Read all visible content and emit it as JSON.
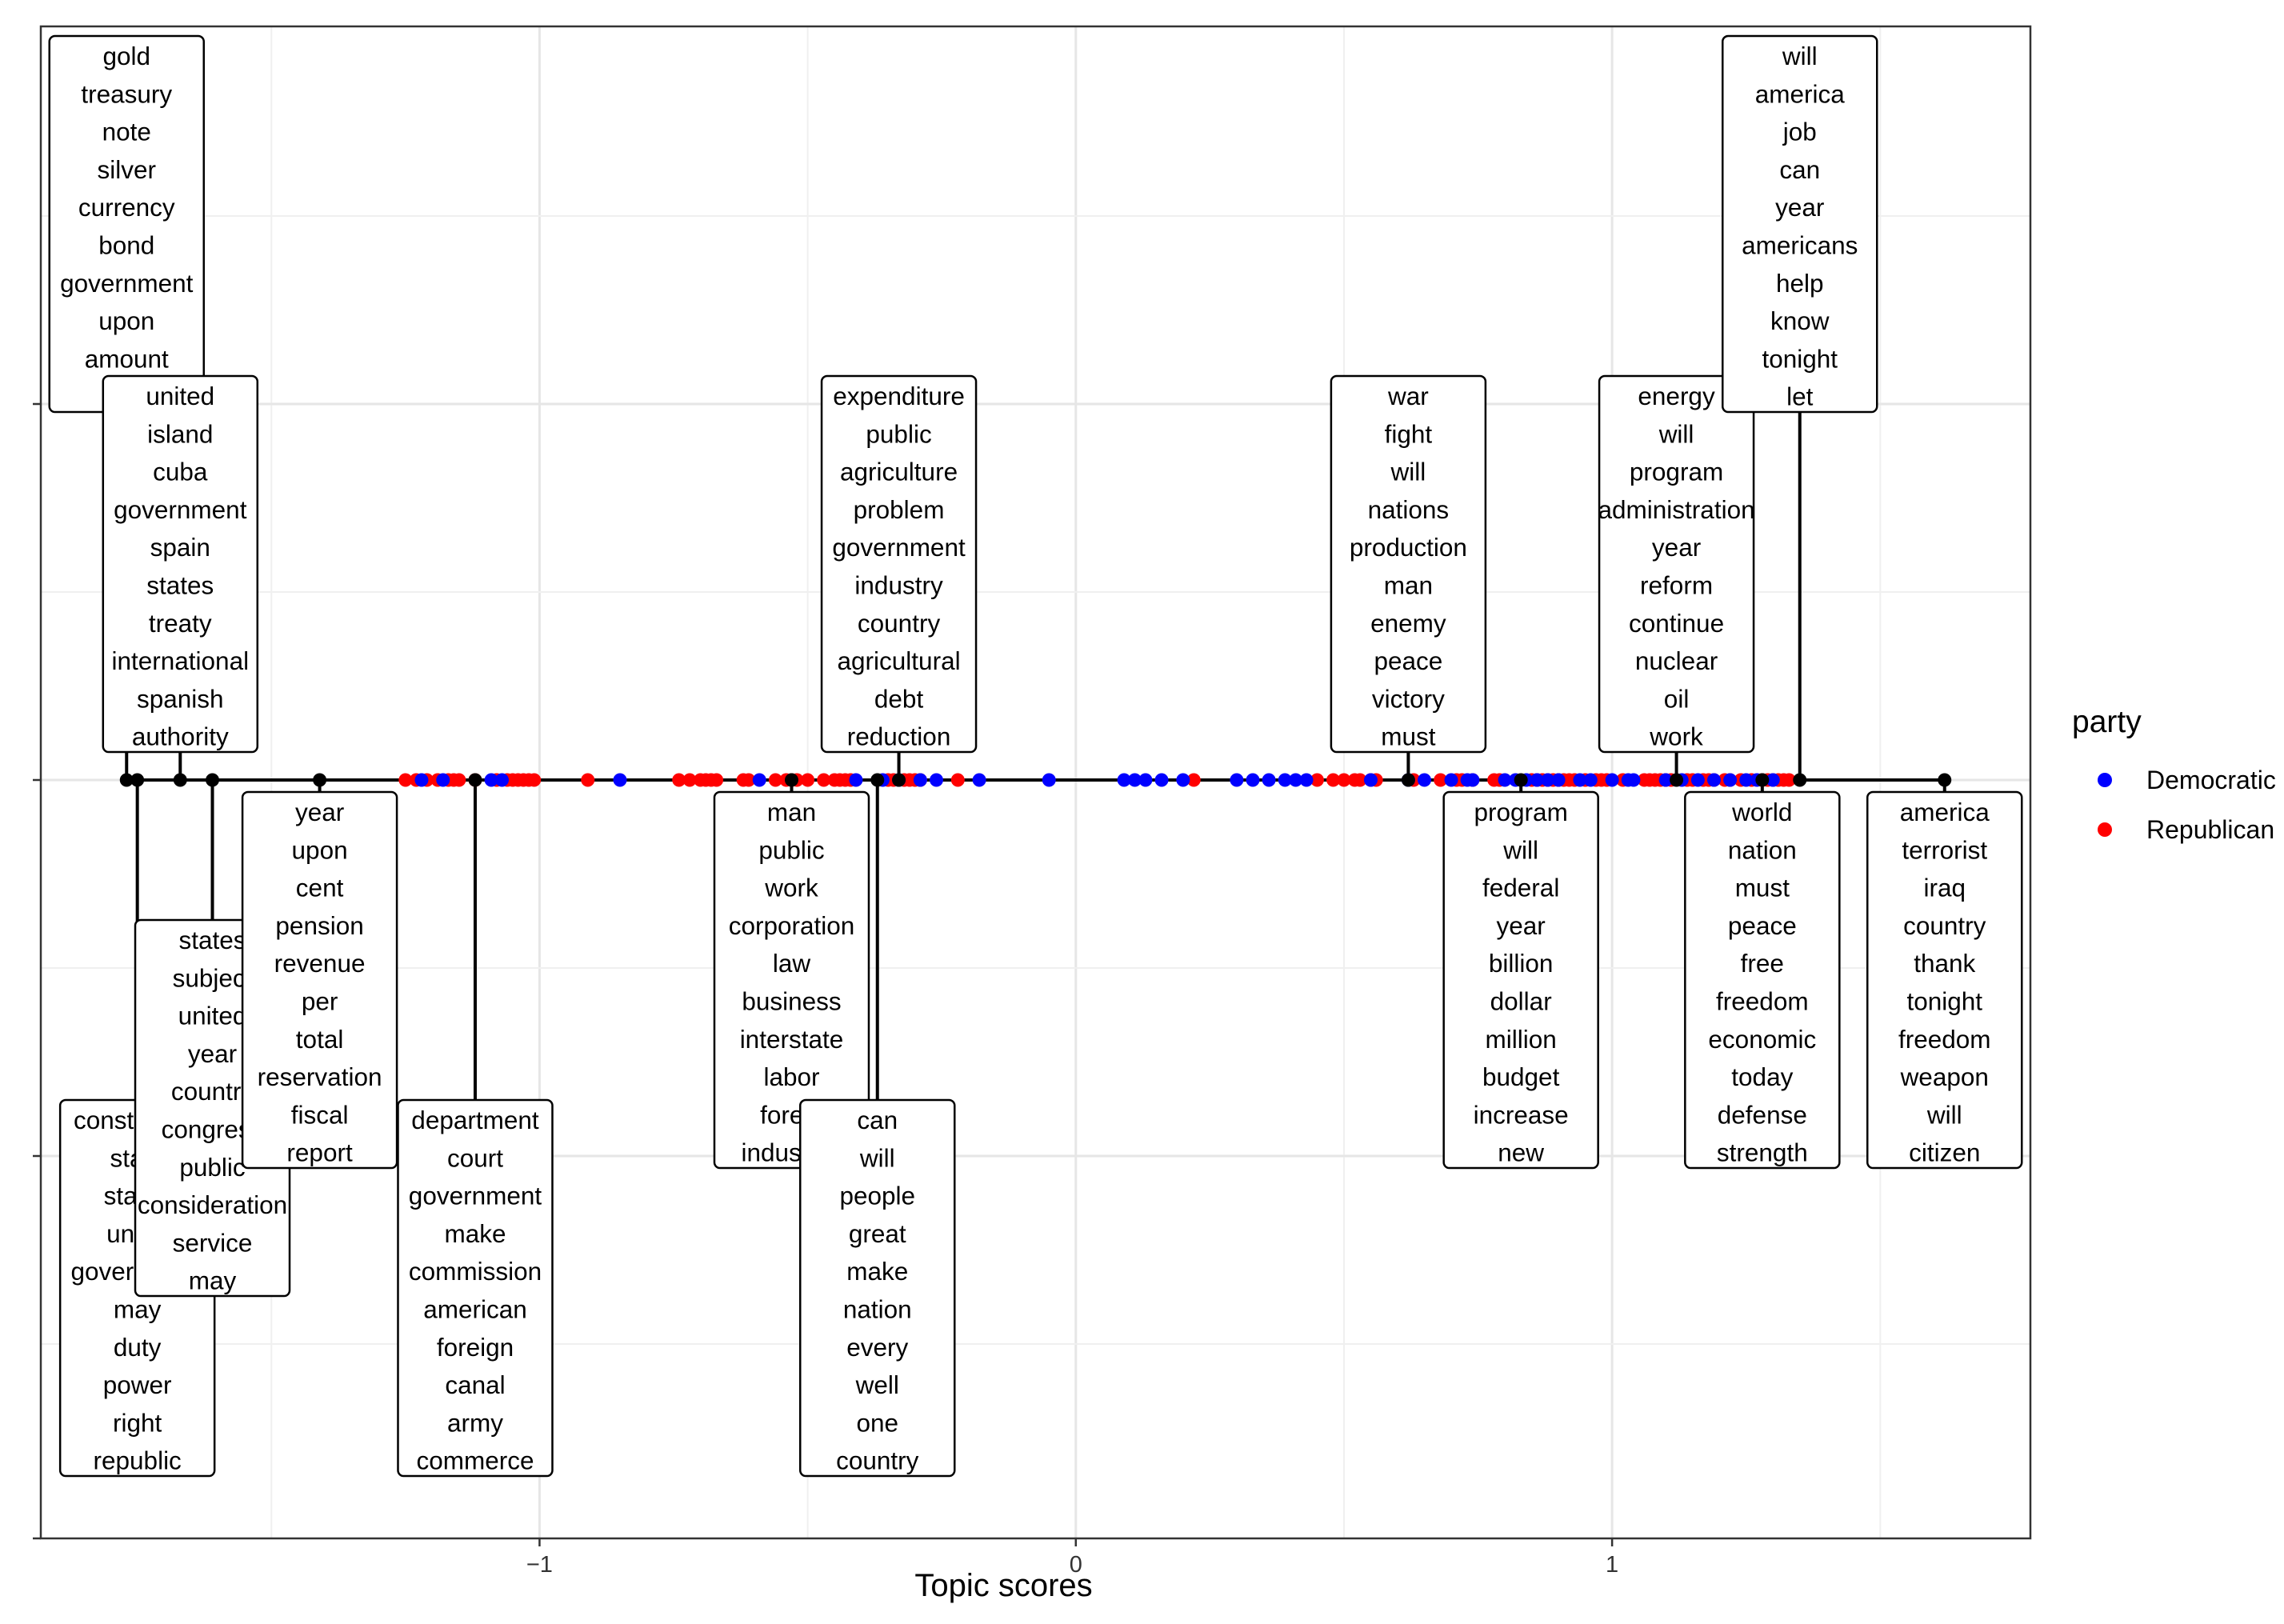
{
  "chart_data": {
    "type": "scatter",
    "xlabel": "Topic scores",
    "ylabel": "",
    "xlim": [
      -1.93,
      1.78
    ],
    "x_ticks": [
      -1,
      0,
      1
    ],
    "x_tick_labels": [
      "−1",
      "0",
      "1"
    ],
    "grid": true,
    "legend": {
      "title": "party",
      "position": "right",
      "entries": [
        {
          "name": "Democratic",
          "color": "#0000ff"
        },
        {
          "name": "Republican",
          "color": "#ff0000"
        }
      ]
    },
    "colors": {
      "Democratic": "#0000ff",
      "Republican": "#ff0000",
      "topic_point": "#000000"
    },
    "topics": [
      {
        "x": -1.77,
        "direction": "up",
        "level": 0,
        "words": [
          "gold",
          "treasury",
          "note",
          "silver",
          "currency",
          "bond",
          "government",
          "upon",
          "amount"
        ]
      },
      {
        "x": -1.67,
        "direction": "up",
        "level": 1,
        "words": [
          "united",
          "island",
          "cuba",
          "government",
          "spain",
          "states",
          "treaty",
          "international",
          "spanish",
          "authority"
        ]
      },
      {
        "x": -1.75,
        "direction": "down",
        "level": 2,
        "words": [
          "constitution",
          "state",
          "states",
          "union",
          "government",
          "may",
          "duty",
          "power",
          "right",
          "republic"
        ]
      },
      {
        "x": -1.61,
        "direction": "down",
        "level": 1,
        "words": [
          "states",
          "subject",
          "united",
          "year",
          "country",
          "congress",
          "public",
          "consideration",
          "service",
          "may"
        ]
      },
      {
        "x": -1.41,
        "direction": "down",
        "level": 0,
        "words": [
          "year",
          "upon",
          "cent",
          "pension",
          "revenue",
          "per",
          "total",
          "reservation",
          "fiscal",
          "report"
        ]
      },
      {
        "x": -1.12,
        "direction": "down",
        "level": 2,
        "words": [
          "department",
          "court",
          "government",
          "make",
          "commission",
          "american",
          "foreign",
          "canal",
          "army",
          "commerce"
        ]
      },
      {
        "x": -0.53,
        "direction": "down",
        "level": 0,
        "words": [
          "man",
          "public",
          "work",
          "corporation",
          "law",
          "business",
          "interstate",
          "labor",
          "forest",
          "industrial"
        ]
      },
      {
        "x": -0.33,
        "direction": "up",
        "level": 1,
        "words": [
          "expenditure",
          "public",
          "agriculture",
          "problem",
          "government",
          "industry",
          "country",
          "agricultural",
          "debt",
          "reduction"
        ]
      },
      {
        "x": -0.37,
        "direction": "down",
        "level": 2,
        "words": [
          "can",
          "will",
          "people",
          "great",
          "make",
          "nation",
          "every",
          "well",
          "one",
          "country"
        ]
      },
      {
        "x": 0.62,
        "direction": "up",
        "level": 1,
        "words": [
          "war",
          "fight",
          "will",
          "nations",
          "production",
          "man",
          "enemy",
          "peace",
          "victory",
          "must"
        ]
      },
      {
        "x": 0.83,
        "direction": "down",
        "level": 0,
        "words": [
          "program",
          "will",
          "federal",
          "year",
          "billion",
          "dollar",
          "million",
          "budget",
          "increase",
          "new"
        ]
      },
      {
        "x": 1.12,
        "direction": "up",
        "level": 1,
        "words": [
          "energy",
          "will",
          "program",
          "administration",
          "year",
          "reform",
          "continue",
          "nuclear",
          "oil",
          "work"
        ]
      },
      {
        "x": 1.28,
        "direction": "down",
        "level": 0,
        "words": [
          "world",
          "nation",
          "must",
          "peace",
          "free",
          "freedom",
          "economic",
          "today",
          "defense",
          "strength"
        ]
      },
      {
        "x": 1.35,
        "direction": "up",
        "level": 0,
        "words": [
          "will",
          "america",
          "job",
          "can",
          "year",
          "americans",
          "help",
          "know",
          "tonight",
          "let"
        ]
      },
      {
        "x": 1.62,
        "direction": "down",
        "level": 0,
        "words": [
          "america",
          "terrorist",
          "iraq",
          "country",
          "thank",
          "tonight",
          "freedom",
          "weapon",
          "will",
          "citizen"
        ]
      }
    ],
    "series": [
      {
        "name": "Republican",
        "x": [
          -1.25,
          -1.23,
          -1.21,
          -1.19,
          -1.17,
          -1.16,
          -1.15,
          -1.12,
          -1.08,
          -1.06,
          -1.05,
          -1.04,
          -1.03,
          -1.02,
          -1.01,
          -0.91,
          -0.74,
          -0.72,
          -0.7,
          -0.69,
          -0.68,
          -0.67,
          -0.62,
          -0.61,
          -0.56,
          -0.54,
          -0.53,
          -0.52,
          -0.5,
          -0.47,
          -0.45,
          -0.44,
          -0.43,
          -0.42,
          -0.35,
          -0.34,
          -0.32,
          -0.31,
          -0.3,
          -0.29,
          -0.22,
          0.22,
          0.45,
          0.48,
          0.5,
          0.52,
          0.53,
          0.55,
          0.56,
          0.63,
          0.68,
          0.71,
          0.72,
          0.74,
          0.78,
          0.79,
          0.85,
          0.86,
          0.87,
          0.88,
          0.89,
          0.9,
          0.91,
          0.92,
          0.93,
          0.95,
          0.97,
          0.98,
          0.99,
          1.02,
          1.06,
          1.07,
          1.08,
          1.09,
          1.1,
          1.11,
          1.14,
          1.15,
          1.17,
          1.18,
          1.19,
          1.21,
          1.22,
          1.24,
          1.26,
          1.28,
          1.29,
          1.3,
          1.31,
          1.32,
          1.33
        ]
      },
      {
        "name": "Democratic",
        "x": [
          -1.22,
          -1.18,
          -1.09,
          -1.07,
          -0.85,
          -0.59,
          -0.41,
          -0.36,
          -0.33,
          -0.29,
          -0.26,
          -0.18,
          -0.05,
          0.09,
          0.11,
          0.13,
          0.16,
          0.2,
          0.3,
          0.33,
          0.36,
          0.39,
          0.41,
          0.43,
          0.55,
          0.62,
          0.65,
          0.7,
          0.73,
          0.74,
          0.8,
          0.82,
          0.84,
          0.86,
          0.88,
          0.9,
          0.94,
          0.96,
          1.0,
          1.03,
          1.04,
          1.1,
          1.13,
          1.16,
          1.19,
          1.22,
          1.25,
          1.27,
          1.3
        ]
      }
    ]
  }
}
